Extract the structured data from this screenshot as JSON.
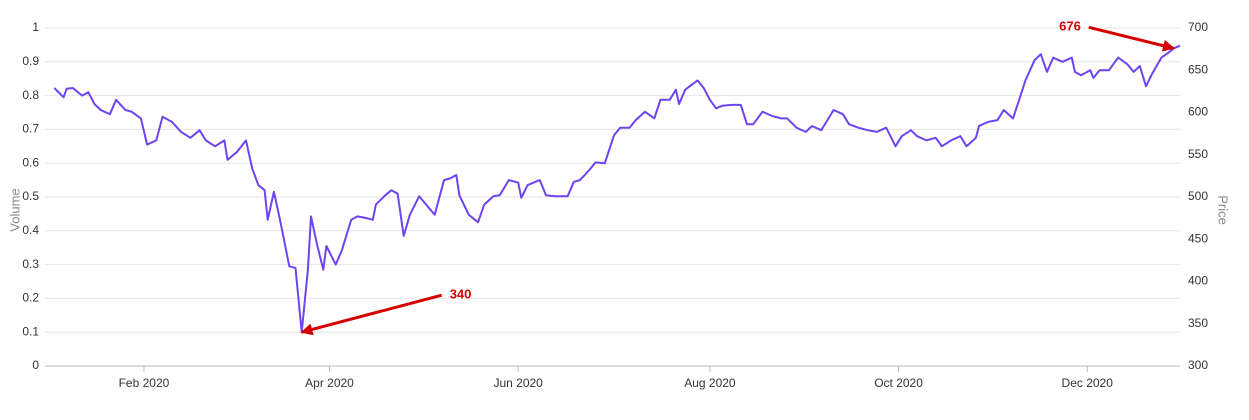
{
  "chart_data": {
    "type": "line",
    "y_label": "Volume",
    "y2_label": "Price",
    "xlim": [
      -1,
      366
    ],
    "xticks": [
      {
        "value": 31,
        "label": "Feb 2020"
      },
      {
        "value": 91,
        "label": "Apr 2020"
      },
      {
        "value": 152,
        "label": "Jun 2020"
      },
      {
        "value": 214,
        "label": "Aug 2020"
      },
      {
        "value": 275,
        "label": "Oct 2020"
      },
      {
        "value": 336,
        "label": "Dec 2020"
      }
    ],
    "ylim": [
      0,
      1
    ],
    "yticks": [
      0,
      0.1,
      0.2,
      0.3,
      0.4,
      0.5,
      0.6,
      0.7,
      0.8,
      0.9,
      1
    ],
    "y2lim": [
      300,
      700
    ],
    "y2ticks": [
      300,
      350,
      400,
      450,
      500,
      550,
      600,
      650,
      700
    ],
    "grid": true,
    "x": [
      2,
      5,
      6,
      8,
      11,
      13,
      15,
      17,
      20,
      22,
      25,
      27,
      30,
      32,
      35,
      37,
      40,
      43,
      46,
      49,
      51,
      54,
      57,
      58,
      61,
      64,
      66,
      68,
      70,
      71,
      73,
      75,
      78,
      80,
      81,
      82,
      84,
      85,
      87,
      89,
      90,
      93,
      95,
      98,
      100,
      103,
      105,
      106,
      109,
      111,
      113,
      115,
      117,
      120,
      122,
      125,
      128,
      130,
      132,
      133,
      136,
      139,
      141,
      144,
      146,
      149,
      152,
      153,
      155,
      157,
      159,
      161,
      164,
      168,
      170,
      172,
      175,
      177,
      180,
      183,
      185,
      188,
      190,
      193,
      196,
      198,
      201,
      203,
      204,
      206,
      210,
      212,
      214,
      216,
      218,
      221,
      224,
      226,
      228,
      231,
      234,
      237,
      239,
      242,
      245,
      247,
      250,
      252,
      254,
      257,
      259,
      262,
      265,
      268,
      271,
      274,
      276,
      279,
      281,
      284,
      287,
      289,
      292,
      295,
      297,
      300,
      301,
      304,
      307,
      309,
      312,
      314,
      316,
      319,
      321,
      323,
      325,
      328,
      331,
      332,
      334,
      337,
      338,
      340,
      343,
      346,
      349,
      351,
      353,
      355,
      357,
      360,
      362,
      364,
      366
    ],
    "series": [
      {
        "color": "#6e44f2",
        "axis": "y2",
        "values": [
          629,
          618,
          628,
          629,
          620,
          624,
          610,
          603,
          598,
          615,
          603,
          601,
          593,
          562,
          567,
          595,
          589,
          577,
          570,
          579,
          567,
          560,
          567,
          544,
          553,
          567,
          534,
          514,
          508,
          473,
          506,
          473,
          418,
          416,
          378,
          340,
          414,
          477,
          443,
          414,
          442,
          420,
          437,
          473,
          477,
          475,
          473,
          491,
          502,
          508,
          504,
          454,
          479,
          501,
          492,
          479,
          520,
          522,
          526,
          502,
          479,
          470,
          491,
          501,
          502,
          520,
          517,
          499,
          514,
          517,
          520,
          502,
          501,
          501,
          518,
          520,
          532,
          541,
          540,
          573,
          582,
          582,
          591,
          601,
          593,
          615,
          615,
          627,
          610,
          627,
          638,
          629,
          615,
          605,
          608,
          609,
          609,
          586,
          586,
          601,
          596,
          593,
          593,
          582,
          577,
          584,
          579,
          591,
          603,
          598,
          586,
          582,
          579,
          577,
          582,
          560,
          572,
          579,
          572,
          567,
          570,
          560,
          567,
          572,
          560,
          570,
          584,
          589,
          591,
          603,
          593,
          615,
          638,
          662,
          669,
          648,
          665,
          660,
          665,
          648,
          644,
          650,
          641,
          650,
          650,
          665,
          657,
          648,
          655,
          631,
          646,
          665,
          670,
          676,
          679
        ]
      }
    ],
    "annotations": [
      {
        "x": 82,
        "y": 340
      },
      {
        "x": 364,
        "y": 676
      }
    ]
  }
}
